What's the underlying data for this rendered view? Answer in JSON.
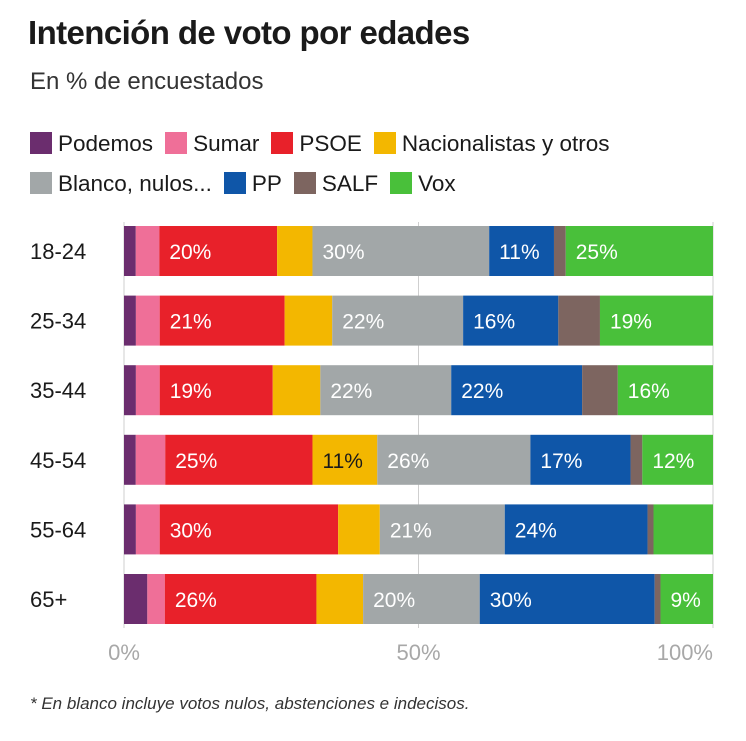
{
  "title": "Intención de voto por edades",
  "subtitle": "En % de encuestados",
  "footnote": "* En blanco incluye votos nulos, abstenciones e indecisos.",
  "chart_data": {
    "type": "bar",
    "orientation": "horizontal",
    "stacked": true,
    "xlim": [
      0,
      100
    ],
    "x_ticks": [
      0,
      50,
      100
    ],
    "x_tick_labels": [
      "0%",
      "50%",
      "100%"
    ],
    "grid": true,
    "legend_position": "top",
    "categories": [
      "18-24",
      "25-34",
      "35-44",
      "45-54",
      "55-64",
      "65+"
    ],
    "series": [
      {
        "name": "Podemos",
        "color": "#6b2d6e",
        "values": [
          2,
          2,
          2,
          2,
          2,
          4
        ]
      },
      {
        "name": "Sumar",
        "color": "#ef6f98",
        "values": [
          4,
          4,
          4,
          5,
          4,
          3
        ]
      },
      {
        "name": "PSOE",
        "color": "#e8212a",
        "values": [
          20,
          21,
          19,
          25,
          30,
          26
        ]
      },
      {
        "name": "Nacionalistas y otros",
        "color": "#f3b700",
        "values": [
          6,
          8,
          8,
          11,
          7,
          8
        ]
      },
      {
        "name": "Blanco, nulos...",
        "color": "#a2a7a8",
        "values": [
          30,
          22,
          22,
          26,
          21,
          20
        ]
      },
      {
        "name": "PP",
        "color": "#0f56a8",
        "values": [
          11,
          16,
          22,
          17,
          24,
          30
        ]
      },
      {
        "name": "SALF",
        "color": "#7d6560",
        "values": [
          2,
          7,
          6,
          2,
          1,
          1
        ]
      },
      {
        "name": "Vox",
        "color": "#49c03a",
        "values": [
          25,
          19,
          16,
          12,
          10,
          9
        ]
      }
    ],
    "data_labels": [
      {
        "PSOE": "20%",
        "Blanco, nulos...": "30%",
        "PP": "11%",
        "Vox": "25%"
      },
      {
        "PSOE": "21%",
        "Blanco, nulos...": "22%",
        "PP": "16%",
        "Vox": "19%"
      },
      {
        "PSOE": "19%",
        "Blanco, nulos...": "22%",
        "PP": "22%",
        "Vox": "16%"
      },
      {
        "PSOE": "25%",
        "Nacionalistas y otros": "11%",
        "Blanco, nulos...": "26%",
        "PP": "17%",
        "Vox": "12%"
      },
      {
        "PSOE": "30%",
        "Blanco, nulos...": "21%",
        "PP": "24%"
      },
      {
        "PSOE": "26%",
        "Blanco, nulos...": "20%",
        "PP": "30%",
        "Vox": "9%"
      }
    ]
  }
}
